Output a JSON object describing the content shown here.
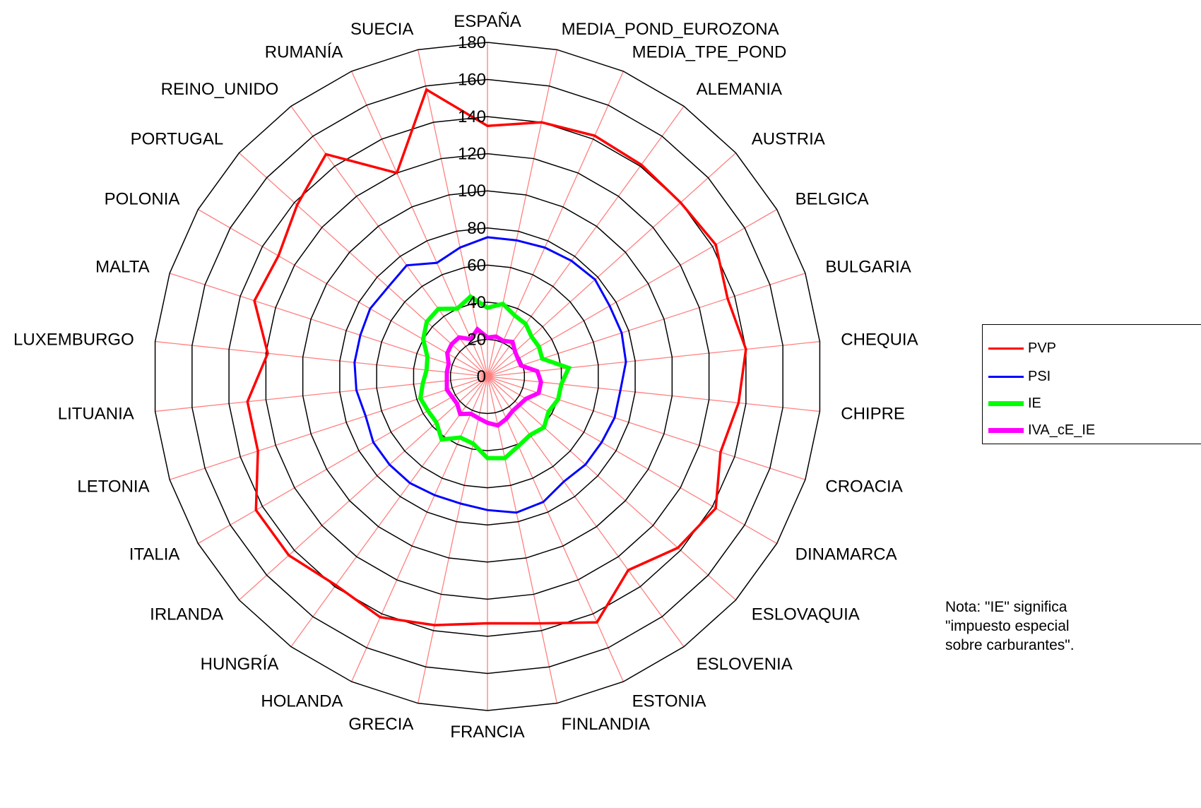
{
  "chart_data": {
    "type": "radar",
    "title": "",
    "categories": [
      "ESPAÑA",
      "MEDIA_POND_EUROZONA",
      "MEDIA_TPE_POND",
      "ALEMANIA",
      "AUSTRIA",
      "BELGICA",
      "BULGARIA",
      "CHEQUIA",
      "CHIPRE",
      "CROACIA",
      "DINAMARCA",
      "ESLOVAQUIA",
      "ESLOVENIA",
      "ESTONIA",
      "FINLANDIA",
      "FRANCIA",
      "GRECIA",
      "HOLANDA",
      "HUNGRÍA",
      "IRLANDA",
      "ITALIA",
      "LETONIA",
      "LITUANIA",
      "LUXEMBURGO",
      "MALTA",
      "POLONIA",
      "PORTUGAL",
      "REINO_UNIDO",
      "RUMANÍA",
      "SUECIA"
    ],
    "rlim": [
      0,
      180
    ],
    "ticks": [
      0,
      20,
      40,
      60,
      80,
      100,
      120,
      140,
      160,
      180
    ],
    "grid": true,
    "legend": "right",
    "series": [
      {
        "name": "PVP",
        "color": "#ff0000",
        "values": [
          135,
          140,
          142,
          141,
          140,
          142,
          136,
          140,
          136,
          132,
          142,
          138,
          129,
          145,
          136,
          133,
          137,
          142,
          139,
          144,
          144,
          130,
          130,
          119,
          132,
          130,
          138,
          148,
          120,
          158
        ]
      },
      {
        "name": "PSI",
        "color": "#0000ff",
        "values": [
          75,
          75,
          76,
          77,
          78,
          76,
          76,
          75,
          72,
          72,
          71,
          71,
          70,
          74,
          75,
          72,
          70,
          70,
          71,
          71,
          71,
          69,
          71,
          72,
          72,
          73,
          72,
          74,
          67,
          71
        ]
      },
      {
        "name": "IE",
        "color": "#00ff00",
        "values": [
          37,
          40,
          36,
          35,
          32,
          32,
          31,
          44,
          40,
          40,
          38,
          41,
          39,
          41,
          45,
          44,
          37,
          36,
          42,
          37,
          37,
          38,
          35,
          33,
          34,
          40,
          44,
          45,
          40,
          44
        ]
      },
      {
        "name": "IVA_cE_IE",
        "color": "#ff00ff",
        "values": [
          21,
          22,
          21,
          23,
          20,
          19,
          19,
          27,
          29,
          29,
          24,
          23,
          23,
          25,
          27,
          25,
          23,
          22,
          25,
          22,
          22,
          23,
          22,
          22,
          22,
          25,
          26,
          26,
          22,
          26
        ]
      }
    ]
  },
  "note": {
    "line1": "Nota: \"IE\" significa",
    "line2": "\"impuesto especial",
    "line3": "sobre carburantes\"."
  }
}
